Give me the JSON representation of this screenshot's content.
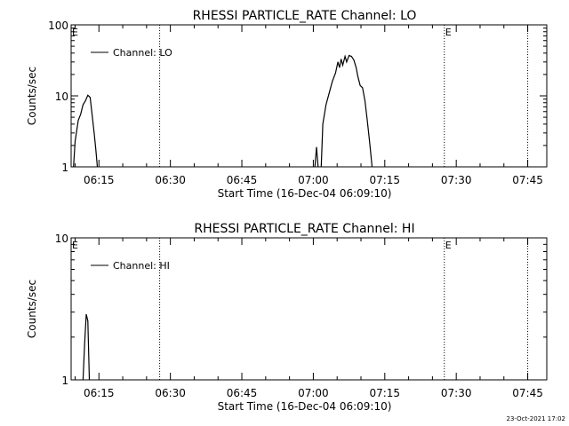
{
  "footer": {
    "timestamp": "23-Oct-2021 17:02"
  },
  "chart_data": [
    {
      "type": "line",
      "title": "RHESSI PARTICLE_RATE Channel: LO",
      "xlabel": "Start Time (16-Dec-04 06:09:10)",
      "ylabel": "Counts/sec",
      "yscale": "log",
      "ylim": [
        1,
        100
      ],
      "xlim": [
        "06:09:10",
        "07:49:00"
      ],
      "xticks": [
        "06:15",
        "06:30",
        "06:45",
        "07:00",
        "07:15",
        "07:30",
        "07:45"
      ],
      "yticks": [
        1,
        10,
        100
      ],
      "ytick_labels": [
        "1",
        "10",
        "100"
      ],
      "legend": {
        "label": "Channel: LO",
        "placement": "top-left"
      },
      "markers": [
        {
          "time": "06:27:45",
          "label": ""
        },
        {
          "time": "07:27:30",
          "label": "E"
        },
        {
          "time": "07:45:00",
          "label": ""
        }
      ],
      "start_marker_label": "E",
      "series": [
        {
          "name": "Channel: LO",
          "segments": [
            [
              [
                "06:09:40",
                1
              ],
              [
                "06:10:00",
                2.3
              ],
              [
                "06:10:40",
                4.5
              ],
              [
                "06:11:10",
                5.5
              ],
              [
                "06:11:40",
                7.5
              ],
              [
                "06:12:10",
                8.5
              ],
              [
                "06:12:40",
                10.2
              ],
              [
                "06:13:10",
                9.5
              ],
              [
                "06:13:30",
                6.0
              ],
              [
                "06:14:00",
                3.0
              ],
              [
                "06:14:20",
                1.8
              ],
              [
                "06:14:40",
                1.0
              ]
            ],
            [
              [
                "07:00:20",
                1.0
              ],
              [
                "07:00:40",
                1.9
              ],
              [
                "07:01:00",
                1.0
              ]
            ],
            [
              [
                "07:01:40",
                1.0
              ],
              [
                "07:02:00",
                4.0
              ],
              [
                "07:02:40",
                7.5
              ],
              [
                "07:03:20",
                11
              ],
              [
                "07:04:00",
                16
              ],
              [
                "07:04:40",
                21
              ],
              [
                "07:05:10",
                30
              ],
              [
                "07:05:30",
                25
              ],
              [
                "07:05:50",
                33
              ],
              [
                "07:06:10",
                27
              ],
              [
                "07:06:40",
                36
              ],
              [
                "07:07:00",
                30
              ],
              [
                "07:07:30",
                37
              ],
              [
                "07:08:00",
                36
              ],
              [
                "07:08:30",
                32
              ],
              [
                "07:09:00",
                25
              ],
              [
                "07:09:20",
                19
              ],
              [
                "07:09:50",
                14
              ],
              [
                "07:10:20",
                13
              ],
              [
                "07:10:50",
                8.5
              ],
              [
                "07:11:20",
                4.5
              ],
              [
                "07:11:50",
                2.2
              ],
              [
                "07:12:20",
                1.0
              ]
            ]
          ]
        }
      ]
    },
    {
      "type": "line",
      "title": "RHESSI PARTICLE_RATE Channel: HI",
      "xlabel": "Start Time (16-Dec-04 06:09:10)",
      "ylabel": "Counts/sec",
      "yscale": "log",
      "ylim": [
        1,
        10
      ],
      "xlim": [
        "06:09:10",
        "07:49:00"
      ],
      "xticks": [
        "06:15",
        "06:30",
        "06:45",
        "07:00",
        "07:15",
        "07:30",
        "07:45"
      ],
      "yticks": [
        1,
        10
      ],
      "ytick_labels": [
        "1",
        "10"
      ],
      "legend": {
        "label": "Channel: HI",
        "placement": "top-left"
      },
      "markers": [
        {
          "time": "06:27:45",
          "label": ""
        },
        {
          "time": "07:27:30",
          "label": "E"
        },
        {
          "time": "07:45:00",
          "label": ""
        }
      ],
      "start_marker_label": "E",
      "series": [
        {
          "name": "Channel: HI",
          "segments": [
            [
              [
                "06:11:40",
                1.0
              ],
              [
                "06:12:00",
                1.8
              ],
              [
                "06:12:20",
                2.9
              ],
              [
                "06:12:40",
                2.6
              ],
              [
                "06:13:00",
                1.0
              ]
            ]
          ]
        }
      ]
    }
  ]
}
